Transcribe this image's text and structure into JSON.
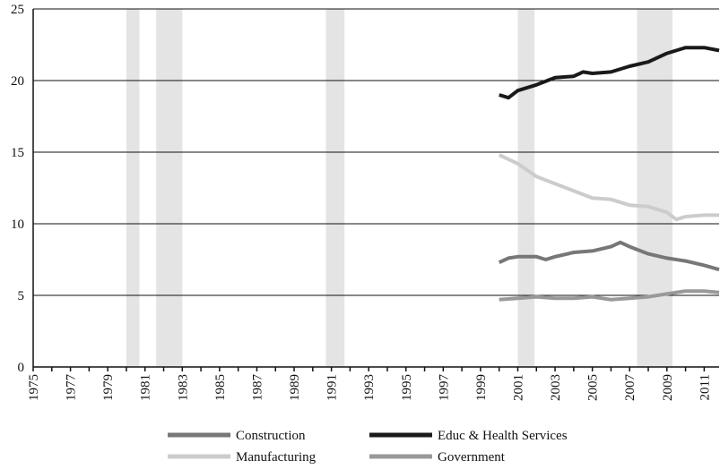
{
  "chart_data": {
    "type": "line",
    "xlim": [
      1975,
      2011.8
    ],
    "ylim": [
      0,
      25
    ],
    "yticks": [
      0,
      5,
      10,
      15,
      20,
      25
    ],
    "xticks": [
      1975,
      1977,
      1979,
      1981,
      1983,
      1985,
      1987,
      1989,
      1991,
      1993,
      1995,
      1997,
      1999,
      2001,
      2003,
      2005,
      2007,
      2009,
      2011
    ],
    "xminor_ticks": [
      1976,
      1978,
      1980,
      1982,
      1984,
      1986,
      1988,
      1990,
      1992,
      1994,
      1996,
      1998,
      2000,
      2002,
      2004,
      2006,
      2008,
      2010
    ],
    "grid": true,
    "shaded_periods": [
      [
        1980.0,
        1980.7
      ],
      [
        1981.6,
        1983.0
      ],
      [
        1990.7,
        1991.7
      ],
      [
        2001.0,
        2001.9
      ],
      [
        2007.4,
        2009.3
      ]
    ],
    "shade_color": "#e4e4e4",
    "series": [
      {
        "name": "Construction",
        "color": "#777777",
        "x": [
          2000,
          2000.5,
          2001,
          2002,
          2002.5,
          2003,
          2004,
          2005,
          2006,
          2006.5,
          2007,
          2008,
          2009,
          2010,
          2011,
          2011.8
        ],
        "values": [
          7.3,
          7.6,
          7.7,
          7.7,
          7.5,
          7.7,
          8.0,
          8.1,
          8.4,
          8.7,
          8.4,
          7.9,
          7.6,
          7.4,
          7.1,
          6.8
        ]
      },
      {
        "name": "Educ & Health Services",
        "color": "#1a1a1a",
        "x": [
          2000,
          2000.5,
          2001,
          2002,
          2003,
          2004,
          2004.5,
          2005,
          2006,
          2007,
          2008,
          2009,
          2010,
          2011,
          2011.8
        ],
        "values": [
          19.0,
          18.8,
          19.3,
          19.7,
          20.2,
          20.3,
          20.6,
          20.5,
          20.6,
          21.0,
          21.3,
          21.9,
          22.3,
          22.3,
          22.1
        ]
      },
      {
        "name": "Manufacturing",
        "color": "#cccccc",
        "x": [
          2000,
          2001,
          2002,
          2003,
          2004,
          2005,
          2006,
          2007,
          2008,
          2009,
          2009.5,
          2010,
          2011,
          2011.8
        ],
        "values": [
          14.8,
          14.2,
          13.3,
          12.8,
          12.3,
          11.8,
          11.7,
          11.3,
          11.2,
          10.8,
          10.3,
          10.5,
          10.6,
          10.6
        ]
      },
      {
        "name": "Government",
        "color": "#999999",
        "x": [
          2000,
          2001,
          2002,
          2003,
          2004,
          2005,
          2006,
          2007,
          2008,
          2009,
          2010,
          2011,
          2011.8
        ],
        "values": [
          4.7,
          4.8,
          4.9,
          4.8,
          4.8,
          4.9,
          4.7,
          4.8,
          4.9,
          5.1,
          5.3,
          5.3,
          5.2
        ]
      }
    ]
  }
}
